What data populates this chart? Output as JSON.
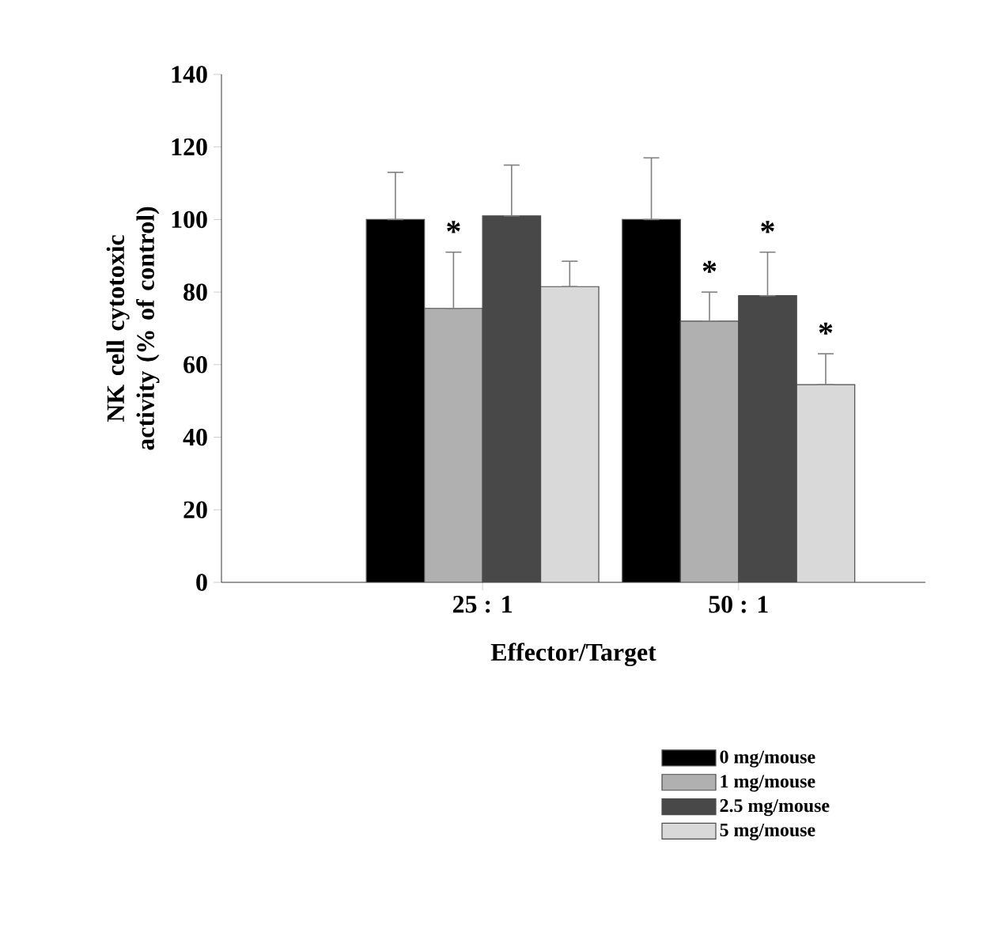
{
  "chart_data": {
    "type": "bar",
    "xlabel": "Effector/Target",
    "ylabel": "NK cell cytotoxic activity (% of control)",
    "categories": [
      "25 : 1",
      "50 : 1"
    ],
    "series": [
      {
        "name": "0 mg/mouse",
        "color": "#000000",
        "values": [
          100,
          100
        ],
        "errors": [
          [
            100,
            113
          ],
          [
            100,
            117
          ]
        ]
      },
      {
        "name": "1 mg/mouse",
        "color": "#b0b0b0",
        "values": [
          75.5,
          72
        ],
        "errors": [
          [
            75.5,
            91
          ],
          [
            72,
            80
          ]
        ],
        "value_labels": [
          "*",
          "*"
        ]
      },
      {
        "name": "2.5 mg/mouse",
        "color": "#484848",
        "values": [
          101,
          79
        ],
        "errors": [
          [
            101,
            115
          ],
          [
            79,
            91
          ]
        ],
        "value_labels": [
          null,
          "*"
        ]
      },
      {
        "name": "5 mg/mouse",
        "color": "#d9d9d9",
        "values": [
          81.5,
          54.5
        ],
        "errors": [
          [
            81.5,
            88.5
          ],
          [
            54.5,
            63
          ]
        ],
        "value_labels": [
          null,
          "*"
        ]
      }
    ],
    "ylim": [
      0,
      140
    ],
    "yticks": [
      0,
      20,
      40,
      60,
      80,
      100,
      120,
      140
    ],
    "grid": false,
    "legend": "bottom right"
  }
}
